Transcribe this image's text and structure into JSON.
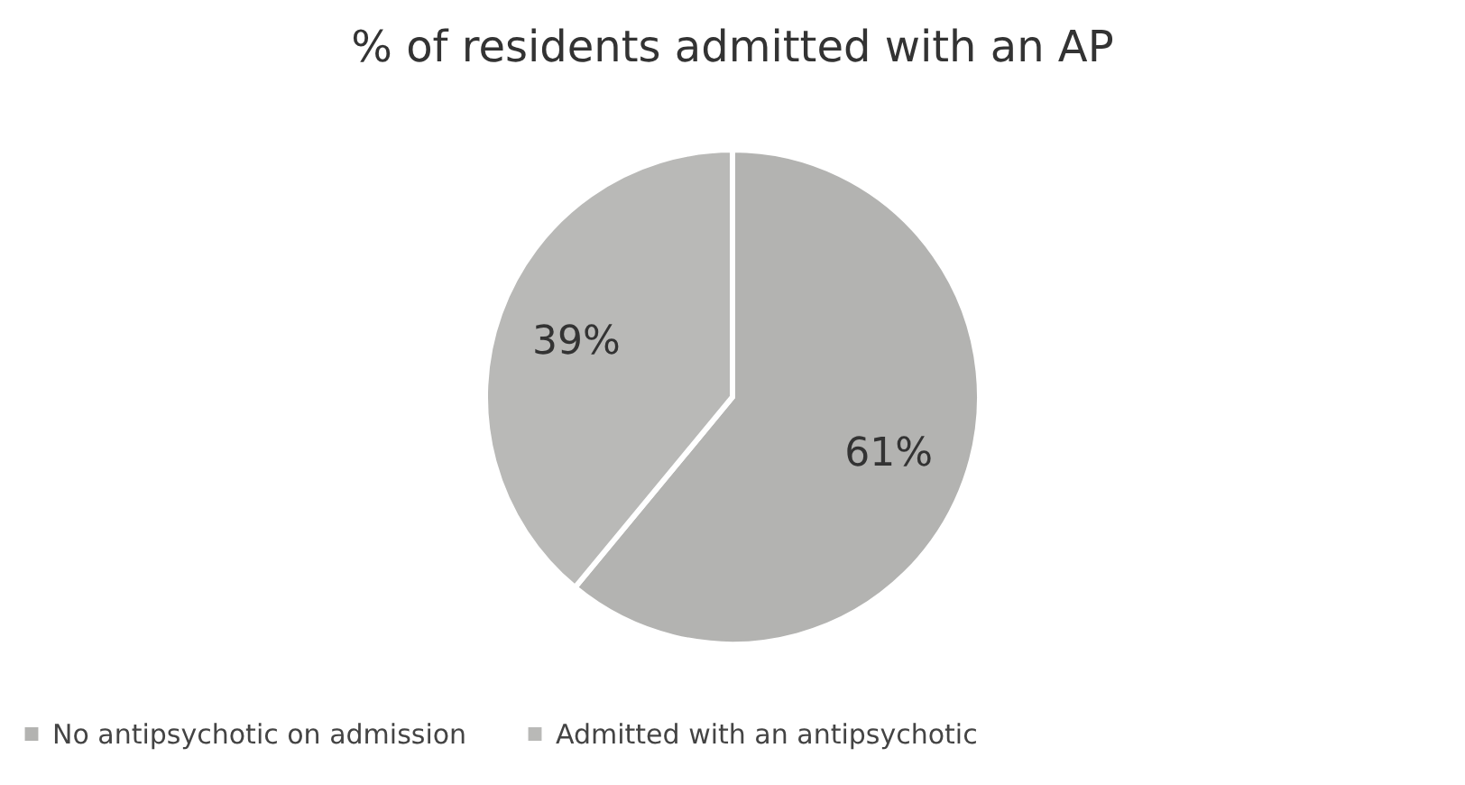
{
  "chart_data": {
    "type": "pie",
    "title": "% of residents admitted with an AP",
    "categories": [
      "No antipsychotic on admission",
      "Admitted with an antipsychotic"
    ],
    "values": [
      61,
      39
    ],
    "colors": [
      "#b3b3b1",
      "#b9b9b7"
    ],
    "value_labels": [
      "61%",
      "39%"
    ],
    "legend": "bottom"
  }
}
